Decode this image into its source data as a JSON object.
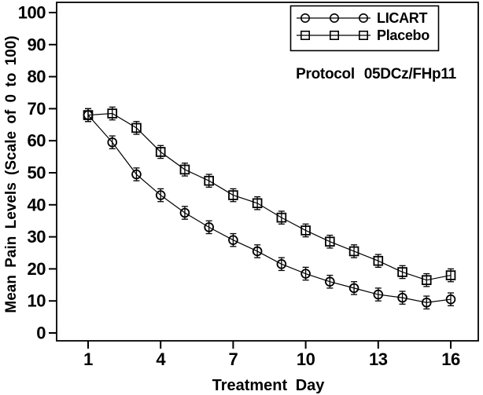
{
  "chart_data": {
    "type": "line",
    "title": "",
    "xlabel": "Treatment Day",
    "ylabel": "Mean Pain Levels (Scale of 0 to 100)",
    "annotation": "Protocol 05DCz/FHp11",
    "x": [
      1,
      2,
      3,
      4,
      5,
      6,
      7,
      8,
      9,
      10,
      11,
      12,
      13,
      14,
      15,
      16
    ],
    "xticks": [
      1,
      4,
      7,
      10,
      13,
      16
    ],
    "yticks": [
      0,
      10,
      20,
      30,
      40,
      50,
      60,
      70,
      80,
      90,
      100
    ],
    "xlim": [
      0,
      17
    ],
    "ylim": [
      0,
      100
    ],
    "grid": false,
    "error_bars": true,
    "stderr": 2,
    "legend": {
      "position": "top-right",
      "entries": [
        "LICART",
        "Placebo"
      ]
    },
    "series": [
      {
        "name": "LICART",
        "marker": "circle",
        "values": [
          68,
          59.5,
          49.5,
          43,
          37.5,
          33,
          29,
          25.5,
          21.5,
          18.5,
          16,
          14,
          12,
          11,
          9.5,
          10.5
        ]
      },
      {
        "name": "Placebo",
        "marker": "square",
        "values": [
          68,
          68.5,
          64,
          56.5,
          51,
          47.5,
          43,
          40.5,
          36,
          32,
          28.5,
          25.5,
          22.5,
          19,
          16.5,
          18
        ]
      }
    ],
    "colors": {
      "foreground": "#000000",
      "background": "#ffffff"
    }
  }
}
